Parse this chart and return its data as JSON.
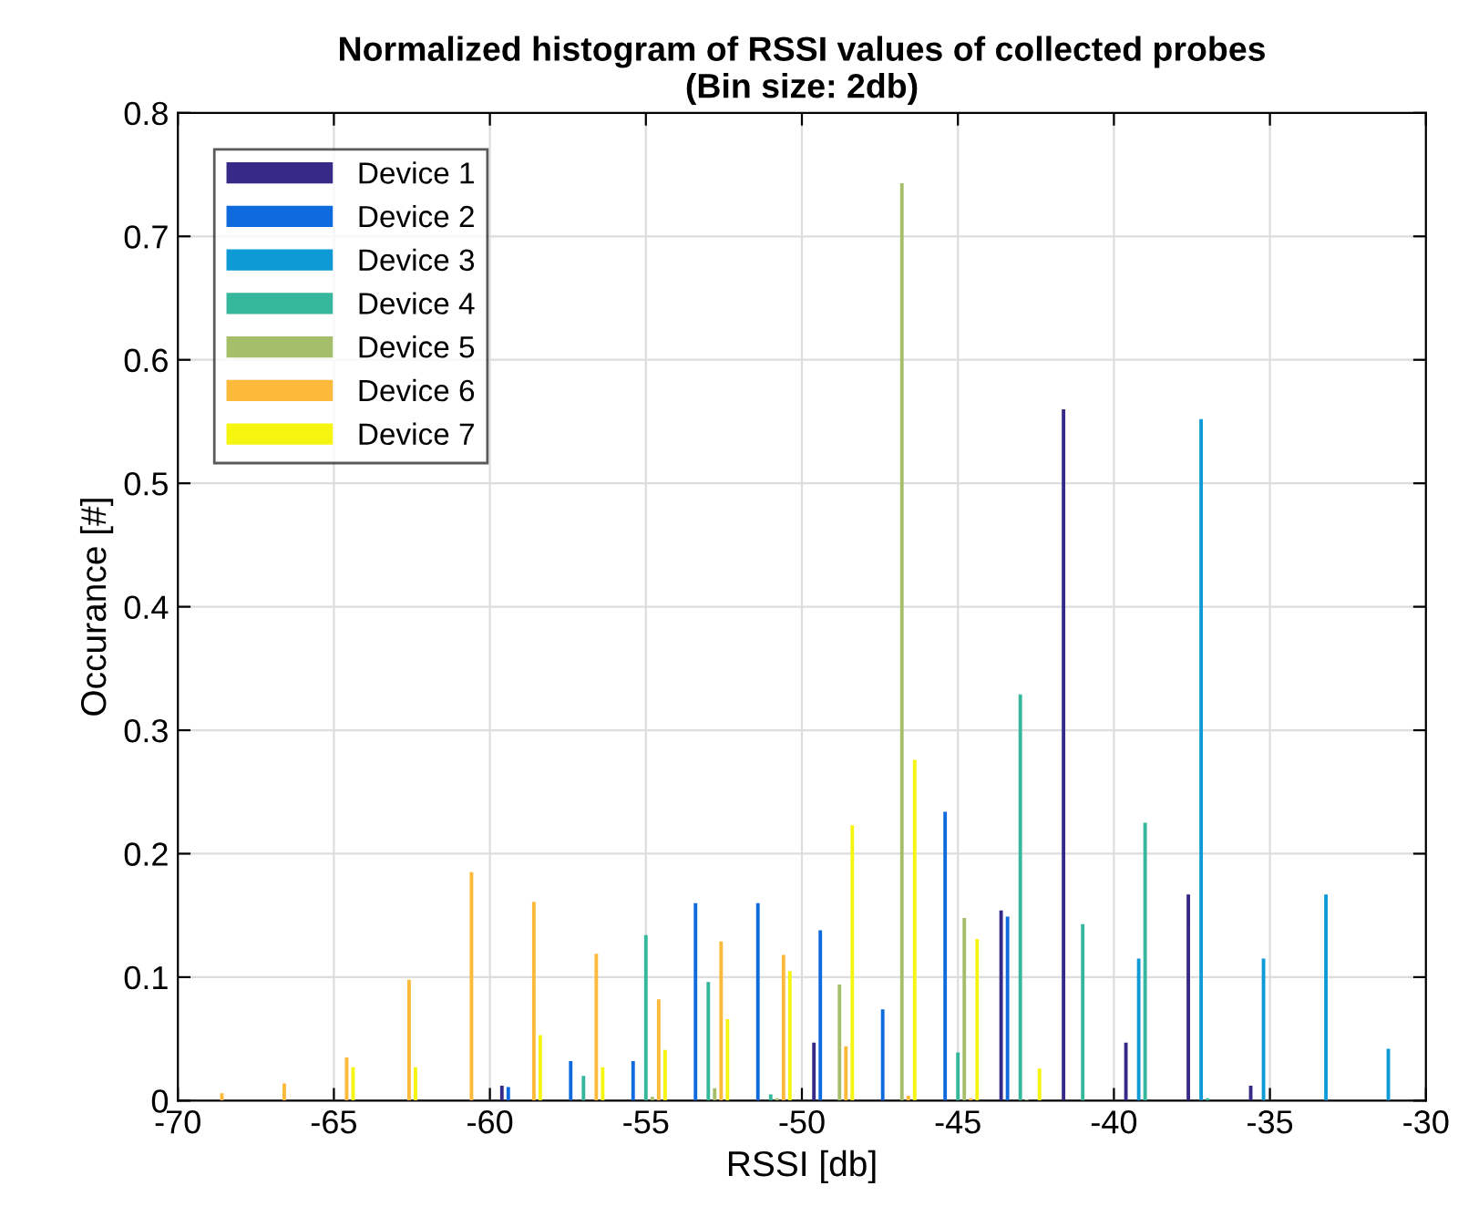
{
  "chart_data": {
    "type": "histogram",
    "title": "Normalized histogram of RSSI values of collected probes\n(Bin size: 2db)",
    "xlabel": "RSSI [db]",
    "ylabel": "Occurance [#]",
    "bins": [
      -70,
      -68,
      -66,
      -64,
      -62,
      -60,
      -58,
      -56,
      -54,
      -52,
      -50,
      -48,
      -46,
      -44,
      -42,
      -40,
      -38,
      -36,
      -34,
      -32,
      -30
    ],
    "series": [
      {
        "name": "Device 1",
        "color": "#352a87",
        "values": [
          0,
          0,
          0,
          0,
          0,
          0.012,
          0,
          0,
          0,
          0,
          0.047,
          0,
          0,
          0.154,
          0.56,
          0.047,
          0.167,
          0.012,
          0,
          0
        ]
      },
      {
        "name": "Device 2",
        "color": "#0f6ade",
        "values": [
          0,
          0,
          0,
          0,
          0,
          0.011,
          0.032,
          0.032,
          0.16,
          0.16,
          0.138,
          0.074,
          0.234,
          0.149,
          0,
          0,
          0,
          0,
          0,
          0
        ]
      },
      {
        "name": "Device 3",
        "color": "#0e9bd5",
        "values": [
          0,
          0,
          0,
          0,
          0,
          0,
          0,
          0,
          0,
          0,
          0,
          0,
          0,
          0,
          0,
          0.115,
          0.552,
          0.115,
          0.167,
          0.042
        ]
      },
      {
        "name": "Device 4",
        "color": "#35b79b",
        "values": [
          0,
          0,
          0,
          0,
          0,
          0,
          0.02,
          0.134,
          0.096,
          0.005,
          0,
          0,
          0.039,
          0.329,
          0.143,
          0.225,
          0.002,
          0,
          0,
          0
        ]
      },
      {
        "name": "Device 5",
        "color": "#a5be6a",
        "values": [
          0,
          0,
          0,
          0,
          0,
          0,
          0,
          0.003,
          0.01,
          0.002,
          0.094,
          0.743,
          0.148,
          0.001,
          0,
          0,
          0,
          0,
          0,
          0
        ]
      },
      {
        "name": "Device 6",
        "color": "#fdb93a",
        "values": [
          0.006,
          0.014,
          0.035,
          0.098,
          0.185,
          0.161,
          0.119,
          0.082,
          0.129,
          0.118,
          0.044,
          0.004,
          0.002,
          0,
          0,
          0,
          0,
          0,
          0,
          0
        ]
      },
      {
        "name": "Device 7",
        "color": "#f5f510",
        "values": [
          0,
          0,
          0.027,
          0.027,
          0,
          0.053,
          0.027,
          0.041,
          0.066,
          0.105,
          0.223,
          0.276,
          0.131,
          0.026,
          0,
          0,
          0,
          0,
          0,
          0
        ]
      }
    ],
    "xlim": [
      -70,
      -30
    ],
    "xticks": [
      -70,
      -65,
      -60,
      -55,
      -50,
      -45,
      -40,
      -35,
      -30
    ],
    "ylim": [
      0,
      0.8
    ],
    "yticks": [
      0,
      0.1,
      0.2,
      0.3,
      0.4,
      0.5,
      0.6,
      0.7,
      0.8
    ],
    "grid": true,
    "legend": "top left"
  }
}
